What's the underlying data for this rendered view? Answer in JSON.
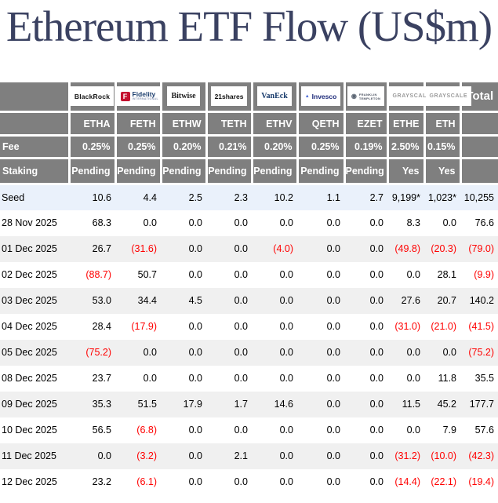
{
  "title": "Ethereum ETF Flow (US$m)",
  "table": {
    "columns": [
      {
        "ticker": "ETHA",
        "logo": "blackrock",
        "provider": "BlackRock",
        "fee": "0.25%",
        "staking": "Pending"
      },
      {
        "ticker": "FETH",
        "logo": "fidelity",
        "provider": "Fidelity",
        "provider_sub": "INTERNATIONAL",
        "fee": "0.25%",
        "staking": "Pending"
      },
      {
        "ticker": "ETHW",
        "logo": "bitwise",
        "provider": "Bitwise",
        "fee": "0.20%",
        "staking": "Pending"
      },
      {
        "ticker": "TETH",
        "logo": "21shares",
        "provider": "21shares",
        "fee": "0.21%",
        "staking": "Pending"
      },
      {
        "ticker": "ETHV",
        "logo": "vaneck",
        "provider": "VanEck",
        "fee": "0.20%",
        "staking": "Pending"
      },
      {
        "ticker": "QETH",
        "logo": "invesco",
        "provider": "Invesco",
        "fee": "0.25%",
        "staking": "Pending"
      },
      {
        "ticker": "EZET",
        "logo": "franklin",
        "provider_lines": [
          "FRANKLIN",
          "TEMPLETON"
        ],
        "fee": "0.19%",
        "staking": "Pending"
      },
      {
        "ticker": "ETHE",
        "logo": "grayscale",
        "provider": "GRAYSCALE",
        "fee": "2.50%",
        "staking": "Yes"
      },
      {
        "ticker": "ETH",
        "logo": "grayscale",
        "provider": "GRAYSCALE",
        "fee": "0.15%",
        "staking": "Yes"
      }
    ],
    "total_label": "Total",
    "row_header_labels": {
      "fee": "Fee",
      "staking": "Staking"
    },
    "rows": [
      {
        "label": "Seed",
        "seed": true,
        "values": [
          "10.6",
          "4.4",
          "2.5",
          "2.3",
          "10.2",
          "1.1",
          "2.7",
          "9,199*",
          "1,023*",
          "10,255"
        ]
      },
      {
        "label": "28 Nov 2025",
        "values": [
          "68.3",
          "0.0",
          "0.0",
          "0.0",
          "0.0",
          "0.0",
          "0.0",
          "8.3",
          "0.0",
          "76.6"
        ]
      },
      {
        "label": "01 Dec 2025",
        "values": [
          "26.7",
          "(31.6)",
          "0.0",
          "0.0",
          "(4.0)",
          "0.0",
          "0.0",
          "(49.8)",
          "(20.3)",
          "(79.0)"
        ]
      },
      {
        "label": "02 Dec 2025",
        "values": [
          "(88.7)",
          "50.7",
          "0.0",
          "0.0",
          "0.0",
          "0.0",
          "0.0",
          "0.0",
          "28.1",
          "(9.9)"
        ]
      },
      {
        "label": "03 Dec 2025",
        "values": [
          "53.0",
          "34.4",
          "4.5",
          "0.0",
          "0.0",
          "0.0",
          "0.0",
          "27.6",
          "20.7",
          "140.2"
        ]
      },
      {
        "label": "04 Dec 2025",
        "values": [
          "28.4",
          "(17.9)",
          "0.0",
          "0.0",
          "0.0",
          "0.0",
          "0.0",
          "(31.0)",
          "(21.0)",
          "(41.5)"
        ]
      },
      {
        "label": "05 Dec 2025",
        "values": [
          "(75.2)",
          "0.0",
          "0.0",
          "0.0",
          "0.0",
          "0.0",
          "0.0",
          "0.0",
          "0.0",
          "(75.2)"
        ]
      },
      {
        "label": "08 Dec 2025",
        "values": [
          "23.7",
          "0.0",
          "0.0",
          "0.0",
          "0.0",
          "0.0",
          "0.0",
          "0.0",
          "11.8",
          "35.5"
        ]
      },
      {
        "label": "09 Dec 2025",
        "values": [
          "35.3",
          "51.5",
          "17.9",
          "1.7",
          "14.6",
          "0.0",
          "0.0",
          "11.5",
          "45.2",
          "177.7"
        ]
      },
      {
        "label": "10 Dec 2025",
        "values": [
          "56.5",
          "(6.8)",
          "0.0",
          "0.0",
          "0.0",
          "0.0",
          "0.0",
          "0.0",
          "7.9",
          "57.6"
        ]
      },
      {
        "label": "11 Dec 2025",
        "values": [
          "0.0",
          "(3.2)",
          "0.0",
          "2.1",
          "0.0",
          "0.0",
          "0.0",
          "(31.2)",
          "(10.0)",
          "(42.3)"
        ]
      },
      {
        "label": "12 Dec 2025",
        "values": [
          "23.2",
          "(6.1)",
          "0.0",
          "0.0",
          "0.0",
          "0.0",
          "0.0",
          "(14.4)",
          "(22.1)",
          "(19.4)"
        ]
      }
    ]
  },
  "icons": {
    "fidelity_f": "F",
    "invesco_triangle": "▲",
    "franklin_circle": "◉"
  },
  "colors": {
    "header_bg": "#7f7f7f",
    "seed_row_bg": "#eaf1fb",
    "alt_row_bg": "#f0f0f0",
    "negative": "#ff0000",
    "title": "#3a4161"
  }
}
